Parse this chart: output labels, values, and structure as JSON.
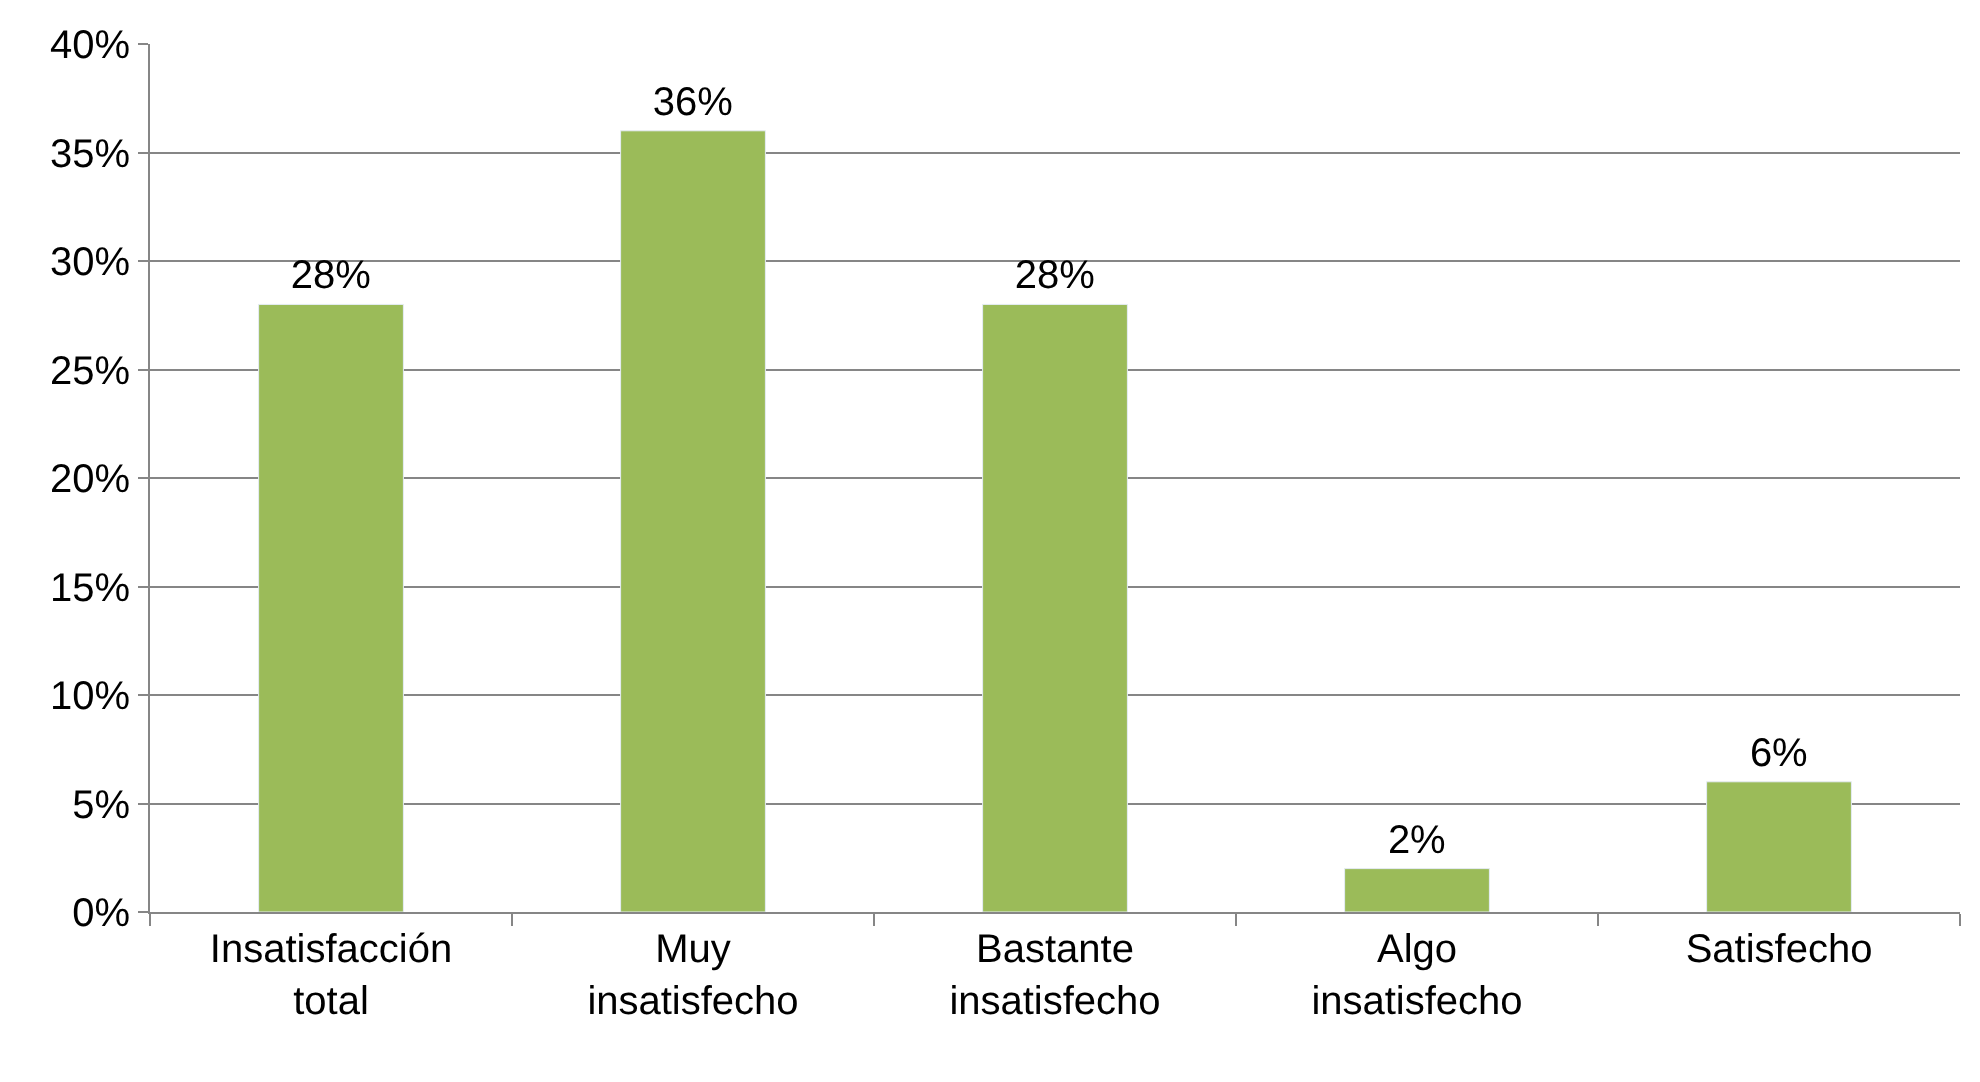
{
  "chart_data": {
    "type": "bar",
    "categories": [
      "Insatisfacción total",
      "Muy insatisfecho",
      "Bastante insatisfecho",
      "Algo insatisfecho",
      "Satisfecho"
    ],
    "values": [
      28,
      36,
      28,
      2,
      6
    ],
    "value_labels": [
      "28%",
      "36%",
      "28%",
      "2%",
      "6%"
    ],
    "color": "#9bbb59",
    "ylim": [
      0,
      40
    ],
    "yticks": [
      {
        "value": 0,
        "label": "0%"
      },
      {
        "value": 5,
        "label": "5%"
      },
      {
        "value": 10,
        "label": "10%"
      },
      {
        "value": 15,
        "label": "15%"
      },
      {
        "value": 20,
        "label": "20%"
      },
      {
        "value": 25,
        "label": "25%"
      },
      {
        "value": 30,
        "label": "30%"
      },
      {
        "value": 35,
        "label": "35%"
      },
      {
        "value": 40,
        "label": "40%"
      }
    ],
    "grid": "y",
    "legend": false
  }
}
